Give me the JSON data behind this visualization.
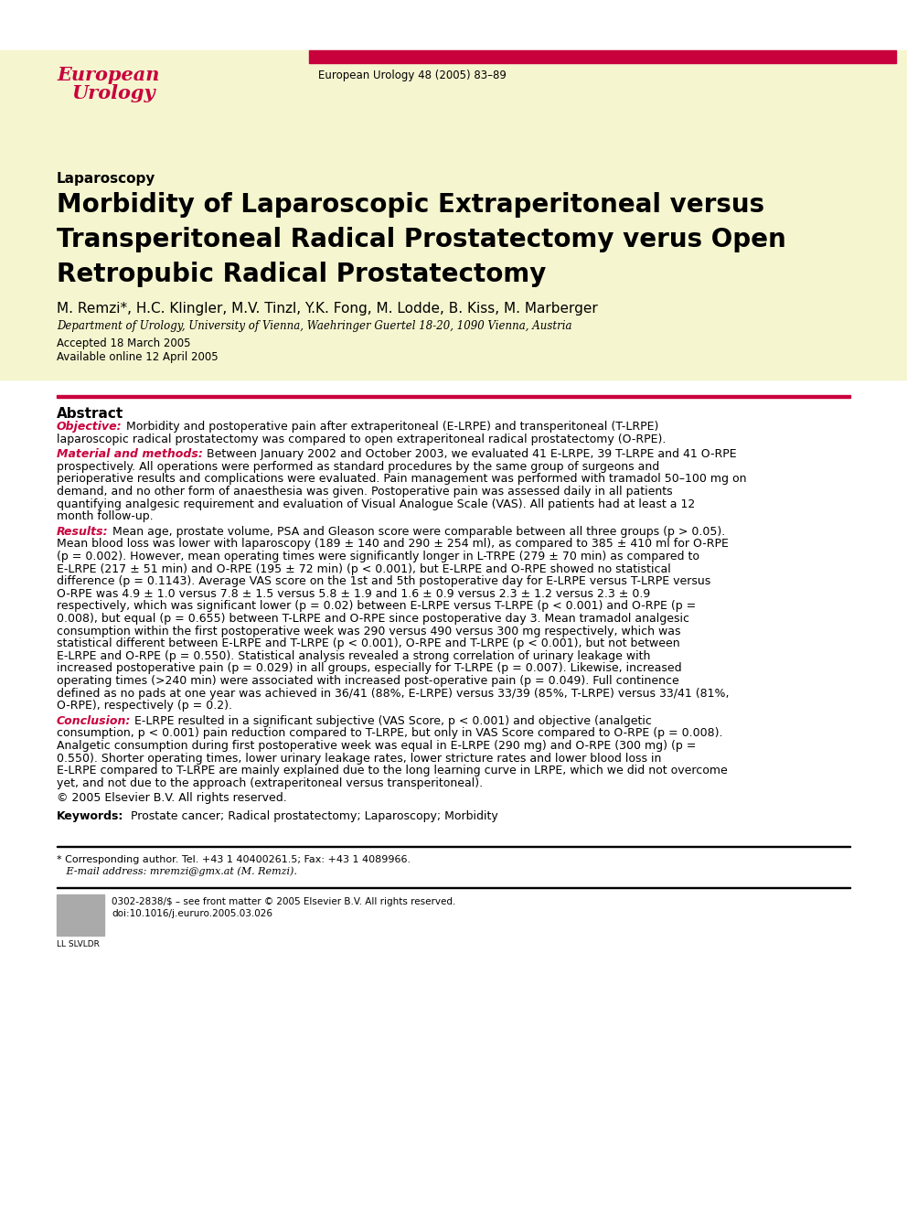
{
  "bg_color": "#F5F5DC",
  "header_bar_color": "#C8003C",
  "journal_ref": "European Urology 48 (2005) 83–89",
  "section_label": "Laparoscopy",
  "title_lines": [
    "Morbidity of Laparoscopic Extraperitoneal versus",
    "Transperitoneal Radical Prostatectomy verus Open",
    "Retropubic Radical Prostatectomy"
  ],
  "authors": "M. Remzi*, H.C. Klingler, M.V. Tinzl, Y.K. Fong, M. Lodde, B. Kiss, M. Marberger",
  "affiliation": "Department of Urology, University of Vienna, Waehringer Guertel 18-20, 1090 Vienna, Austria",
  "accepted": "Accepted 18 March 2005",
  "available": "Available online 12 April 2005",
  "abstract_title": "Abstract",
  "objective_label": "Objective:",
  "objective_body": "  Morbidity and postoperative pain after extraperitoneal (E-LRPE) and transperitoneal (T-LRPE) laparoscopic radical prostatectomy was compared to open extraperitoneal radical prostatectomy (O-RPE).",
  "methods_label": "Material and methods:",
  "methods_body": " Between January 2002 and October 2003, we evaluated 41 E-LRPE, 39 T-LRPE and 41 O-RPE prospectively. All operations were performed as standard procedures by the same group of surgeons and perioperative results and complications were evaluated. Pain management was performed with tramadol 50–100 mg on demand, and no other form of anaesthesia was given. Postoperative pain was assessed daily in all patients quantifying analgesic requirement and evaluation of Visual Analogue Scale (VAS). All patients had at least a 12 month follow-up.",
  "results_label": "Results:",
  "results_body": " Mean age, prostate volume, PSA and Gleason score were comparable between all three groups (p > 0.05). Mean blood loss was lower with laparoscopy (189 ± 140 and 290 ± 254 ml), as compared to 385 ± 410 ml for O-RPE (p = 0.002). However, mean operating times were significantly longer in L-TRPE (279 ± 70 min) as compared to E-LRPE (217 ± 51 min) and O-RPE (195 ± 72 min) (p < 0.001), but E-LRPE and O-RPE showed no statistical difference (p = 0.1143). Average VAS score on the 1st and 5th postoperative day for E-LRPE versus T-LRPE versus O-RPE was 4.9 ± 1.0 versus 7.8 ± 1.5 versus 5.8 ± 1.9 and 1.6 ± 0.9 versus 2.3 ± 1.2 versus 2.3 ± 0.9 respectively, which was significant lower (p = 0.02) between E-LRPE versus T-LRPE (p < 0.001) and O-RPE (p = 0.008), but equal (p = 0.655) between T-LRPE and O-RPE since postoperative day 3. Mean tramadol analgesic consumption within the first postoperative week was 290 versus 490 versus 300 mg respectively, which was statistical different between E-LRPE and T-LRPE (p < 0.001), O-RPE and T-LRPE (p < 0.001), but not between E-LRPE and O-RPE (p = 0.550). Statistical analysis revealed a strong correlation of urinary leakage with increased postoperative pain (p = 0.029) in all groups, especially for T-LRPE (p = 0.007). Likewise, increased operating times (>240 min) were associated with increased post-operative pain (p = 0.049). Full continence defined as no pads at one year was achieved in 36/41 (88%, E-LRPE) versus 33/39 (85%, T-LRPE) versus 33/41 (81%, O-RPE), respectively (p = 0.2).",
  "conclusion_label": "Conclusion:",
  "conclusion_body": " E-LRPE resulted in a significant subjective (VAS Score, p < 0.001) and objective (analgetic consumption, p < 0.001) pain reduction compared to T-LRPE, but only in VAS Score compared to O-RPE (p = 0.008). Analgetic consumption during first postoperative week was equal in E-LRPE (290 mg) and O-RPE (300 mg) (p = 0.550). Shorter operating times, lower urinary leakage rates, lower stricture rates and lower blood loss in E-LRPE compared to T-LRPE are mainly explained due to the long learning curve in LRPE, which we did not overcome yet, and not due to the approach (extraperitoneal versus transperitoneal).",
  "copyright": "© 2005 Elsevier B.V. All rights reserved.",
  "keywords_label": "Keywords:",
  "keywords_body": "  Prostate cancer; Radical prostatectomy; Laparoscopy; Morbidity",
  "footnote_star": "* Corresponding author. Tel. +43 1 40400261.5; Fax: +43 1 4089966.",
  "footnote_email": "   E-mail address: mremzi@gmx.at (M. Remzi).",
  "footnote_issn": "0302-2838/$ – see front matter © 2005 Elsevier B.V. All rights reserved.",
  "footnote_doi": "doi:10.1016/j.eururo.2005.03.026",
  "footnote_logo": "LL SLVLDR",
  "red_color": "#C8003C",
  "text_color": "#000000"
}
